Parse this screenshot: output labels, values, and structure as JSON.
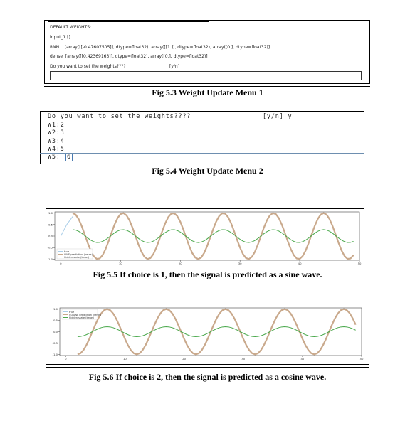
{
  "menu1": {
    "title": "DEFAULT WEIGHTS:",
    "line_input": "input_1 []",
    "line_rnn": "RNN    [array([[-0.47607505]], dtype=float32), array([[1.]], dtype=float32), array([0.], dtype=float32)]",
    "line_dense": "dense  [array([[0.42369163]], dtype=float32), array([0.], dtype=float32)]",
    "prompt": "Do you want to set the weights????",
    "prompt_choice": "[y/n]",
    "caption": "Fig 5.3 Weight Update Menu 1"
  },
  "menu2": {
    "prompt": "Do you want to set the weights????",
    "prompt_choice": "[y/n] y",
    "lines": [
      "W1:2",
      "W2:3",
      "W3:4",
      "W4:5"
    ],
    "last_label": "W5:",
    "last_value": "6",
    "caption": "Fig 5.4 Weight Update Menu 2"
  },
  "figures": [
    {
      "caption": "Fig 5.5 If choice is 1, then the signal is predicted as a sine wave.",
      "legend": [
        "true",
        "SINE prediction (keras)",
        "hidden state (keras)"
      ],
      "colors": {
        "true": "#a9cde8",
        "prediction": "#c9a98c",
        "hidden": "#49a84b"
      }
    },
    {
      "caption": "Fig 5.6 If choice is 2, then the signal is predicted as a cosine wave.",
      "legend": [
        "true",
        "COSINE prediction (keras)",
        "hidden state (keras)"
      ],
      "colors": {
        "true": "#a9cde8",
        "prediction": "#c9a98c",
        "hidden": "#49a84b"
      }
    }
  ],
  "chart_data": [
    {
      "type": "line",
      "x_ticks": [
        "0",
        "10",
        "20",
        "30",
        "40",
        "50"
      ],
      "y_ticks": [
        "1.0",
        "0.5",
        "0.0",
        "-0.5",
        "-1.0"
      ],
      "xlim": [
        -1,
        50
      ],
      "ylim": [
        -1.05,
        1.05
      ],
      "grid": false,
      "legend_position": "lower-left",
      "series": [
        {
          "name": "true",
          "x": [
            0,
            1,
            2
          ],
          "y": [
            0.0,
            0.5,
            0.85
          ]
        },
        {
          "name": "SINE prediction (keras)",
          "function": "sine",
          "x_range": [
            2,
            49
          ],
          "amplitude": 1.0,
          "period": 8.4
        },
        {
          "name": "hidden state (keras)",
          "function": "sine",
          "x_range": [
            2,
            49
          ],
          "amplitude": 0.28,
          "period": 8.4
        }
      ]
    },
    {
      "type": "line",
      "x_ticks": [
        "0",
        "10",
        "20",
        "30",
        "40",
        "50"
      ],
      "y_ticks": [
        "1.0",
        "0.5",
        "0.0",
        "-0.5",
        "-1.0"
      ],
      "xlim": [
        -1,
        50
      ],
      "ylim": [
        -1.05,
        1.05
      ],
      "grid": false,
      "legend_position": "upper-left",
      "series": [
        {
          "name": "true",
          "x": [],
          "y": []
        },
        {
          "name": "COSINE prediction (keras)",
          "function": "cosine",
          "x_range": [
            2,
            49
          ],
          "amplitude": 1.0,
          "period": 10
        },
        {
          "name": "hidden state (keras)",
          "function": "cosine",
          "x_range": [
            2,
            49
          ],
          "amplitude": 0.22,
          "period": 10
        }
      ]
    }
  ]
}
